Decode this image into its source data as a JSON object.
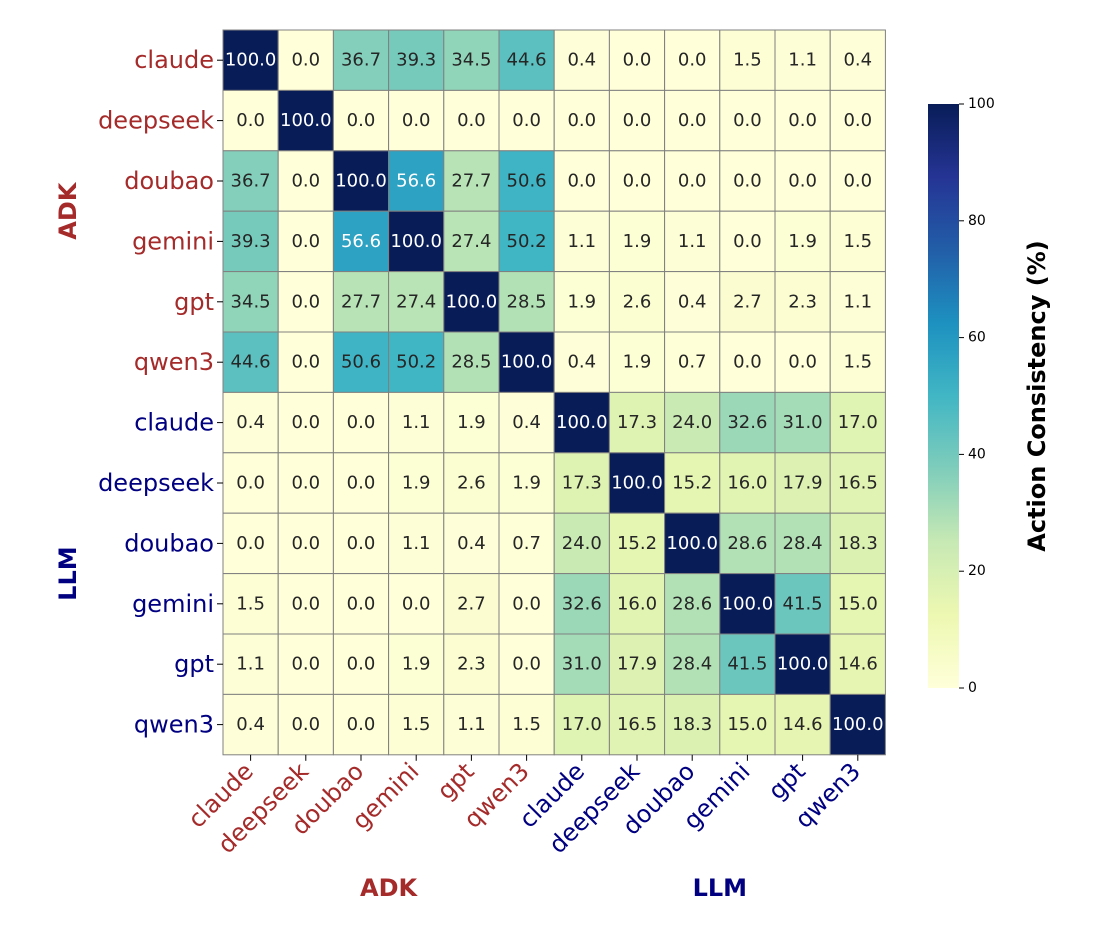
{
  "chart_data": {
    "type": "heatmap",
    "row_labels": [
      "claude",
      "deepseek",
      "doubao",
      "gemini",
      "gpt",
      "qwen3",
      "claude",
      "deepseek",
      "doubao",
      "gemini",
      "gpt",
      "qwen3"
    ],
    "col_labels": [
      "claude",
      "deepseek",
      "doubao",
      "gemini",
      "gpt",
      "qwen3",
      "claude",
      "deepseek",
      "doubao",
      "gemini",
      "gpt",
      "qwen3"
    ],
    "label_groups": [
      "ADK",
      "ADK",
      "ADK",
      "ADK",
      "ADK",
      "ADK",
      "LLM",
      "LLM",
      "LLM",
      "LLM",
      "LLM",
      "LLM"
    ],
    "groups": [
      {
        "name": "ADK",
        "color": "#a52a2a",
        "start": 0,
        "end": 6
      },
      {
        "name": "LLM",
        "color": "#000080",
        "start": 6,
        "end": 12
      }
    ],
    "values": [
      [
        100.0,
        0.0,
        36.7,
        39.3,
        34.5,
        44.6,
        0.4,
        0.0,
        0.0,
        1.5,
        1.1,
        0.4
      ],
      [
        0.0,
        100.0,
        0.0,
        0.0,
        0.0,
        0.0,
        0.0,
        0.0,
        0.0,
        0.0,
        0.0,
        0.0
      ],
      [
        36.7,
        0.0,
        100.0,
        56.6,
        27.7,
        50.6,
        0.0,
        0.0,
        0.0,
        0.0,
        0.0,
        0.0
      ],
      [
        39.3,
        0.0,
        56.6,
        100.0,
        27.4,
        50.2,
        1.1,
        1.9,
        1.1,
        0.0,
        1.9,
        1.5
      ],
      [
        34.5,
        0.0,
        27.7,
        27.4,
        100.0,
        28.5,
        1.9,
        2.6,
        0.4,
        2.7,
        2.3,
        1.1
      ],
      [
        44.6,
        0.0,
        50.6,
        50.2,
        28.5,
        100.0,
        0.4,
        1.9,
        0.7,
        0.0,
        0.0,
        1.5
      ],
      [
        0.4,
        0.0,
        0.0,
        1.1,
        1.9,
        0.4,
        100.0,
        17.3,
        24.0,
        32.6,
        31.0,
        17.0
      ],
      [
        0.0,
        0.0,
        0.0,
        1.9,
        2.6,
        1.9,
        17.3,
        100.0,
        15.2,
        16.0,
        17.9,
        16.5
      ],
      [
        0.0,
        0.0,
        0.0,
        1.1,
        0.4,
        0.7,
        24.0,
        15.2,
        100.0,
        28.6,
        28.4,
        18.3
      ],
      [
        1.5,
        0.0,
        0.0,
        0.0,
        2.7,
        0.0,
        32.6,
        16.0,
        28.6,
        100.0,
        41.5,
        15.0
      ],
      [
        1.1,
        0.0,
        0.0,
        1.9,
        2.3,
        0.0,
        31.0,
        17.9,
        28.4,
        41.5,
        100.0,
        14.6
      ],
      [
        0.4,
        0.0,
        0.0,
        1.5,
        1.1,
        1.5,
        17.0,
        16.5,
        18.3,
        15.0,
        14.6,
        100.0
      ]
    ],
    "colormap": "YlGnBu",
    "vmin": 0,
    "vmax": 100,
    "value_format": "0.1f",
    "colorbar": {
      "label": "Action Consistency (%)",
      "ticks": [
        0,
        20,
        40,
        60,
        80,
        100
      ]
    }
  }
}
